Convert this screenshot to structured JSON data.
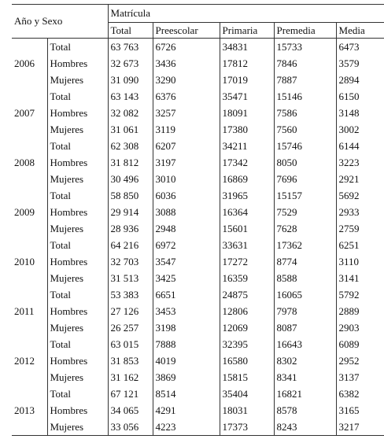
{
  "header": {
    "group_label": "Año y Sexo",
    "group": "Matrícula",
    "columns": [
      "Total",
      "Preescolar",
      "Primaria",
      "Premedia",
      "Media"
    ]
  },
  "years": [
    {
      "year": "2006",
      "rows": [
        {
          "sex": "Total",
          "values": [
            "63 763",
            "6726",
            "34831",
            "15733",
            "6473"
          ]
        },
        {
          "sex": "Hombres",
          "values": [
            "32 673",
            "3436",
            "17812",
            "7846",
            "3579"
          ]
        },
        {
          "sex": "Mujeres",
          "values": [
            "31 090",
            "3290",
            "17019",
            "7887",
            "2894"
          ]
        }
      ]
    },
    {
      "year": "2007",
      "rows": [
        {
          "sex": "Total",
          "values": [
            "63 143",
            "6376",
            "35471",
            "15146",
            "6150"
          ]
        },
        {
          "sex": "Hombres",
          "values": [
            "32 082",
            "3257",
            "18091",
            "7586",
            "3148"
          ]
        },
        {
          "sex": "Mujeres",
          "values": [
            "31 061",
            "3119",
            "17380",
            "7560",
            "3002"
          ]
        }
      ]
    },
    {
      "year": "2008",
      "rows": [
        {
          "sex": "Total",
          "values": [
            "62 308",
            "6207",
            "34211",
            "15746",
            "6144"
          ]
        },
        {
          "sex": "Hombres",
          "values": [
            "31 812",
            "3197",
            "17342",
            "8050",
            "3223"
          ]
        },
        {
          "sex": "Mujeres",
          "values": [
            "30 496",
            "3010",
            "16869",
            "7696",
            "2921"
          ]
        }
      ]
    },
    {
      "year": "2009",
      "rows": [
        {
          "sex": "Total",
          "values": [
            "58 850",
            "6036",
            "31965",
            "15157",
            "5692"
          ]
        },
        {
          "sex": "Hombres",
          "values": [
            "29 914",
            "3088",
            "16364",
            "7529",
            "2933"
          ]
        },
        {
          "sex": "Mujeres",
          "values": [
            "28 936",
            "2948",
            "15601",
            "7628",
            "2759"
          ]
        }
      ]
    },
    {
      "year": "2010",
      "rows": [
        {
          "sex": "Total",
          "values": [
            "64 216",
            "6972",
            "33631",
            "17362",
            "6251"
          ]
        },
        {
          "sex": "Hombres",
          "values": [
            "32 703",
            "3547",
            "17272",
            "8774",
            "3110"
          ]
        },
        {
          "sex": "Mujeres",
          "values": [
            "31 513",
            "3425",
            "16359",
            "8588",
            "3141"
          ]
        }
      ]
    },
    {
      "year": "2011",
      "rows": [
        {
          "sex": "Total",
          "values": [
            "53 383",
            "6651",
            "24875",
            "16065",
            "5792"
          ]
        },
        {
          "sex": "Hombres",
          "values": [
            "27 126",
            "3453",
            "12806",
            "7978",
            "2889"
          ]
        },
        {
          "sex": "Mujeres",
          "values": [
            "26 257",
            "3198",
            "12069",
            "8087",
            "2903"
          ]
        }
      ]
    },
    {
      "year": "2012",
      "rows": [
        {
          "sex": "Total",
          "values": [
            "63 015",
            "7888",
            "32395",
            "16643",
            "6089"
          ]
        },
        {
          "sex": "Hombres",
          "values": [
            "31 853",
            "4019",
            "16580",
            "8302",
            "2952"
          ]
        },
        {
          "sex": "Mujeres",
          "values": [
            "31 162",
            "3869",
            "15815",
            "8341",
            "3137"
          ]
        }
      ]
    },
    {
      "year": "2013",
      "rows": [
        {
          "sex": "Total",
          "values": [
            "67 121",
            "8514",
            "35404",
            "16821",
            "6382"
          ]
        },
        {
          "sex": "Hombres",
          "values": [
            "34 065",
            "4291",
            "18031",
            "8578",
            "3165"
          ]
        },
        {
          "sex": "Mujeres",
          "values": [
            "33 056",
            "4223",
            "17373",
            "8243",
            "3217"
          ]
        }
      ]
    }
  ]
}
